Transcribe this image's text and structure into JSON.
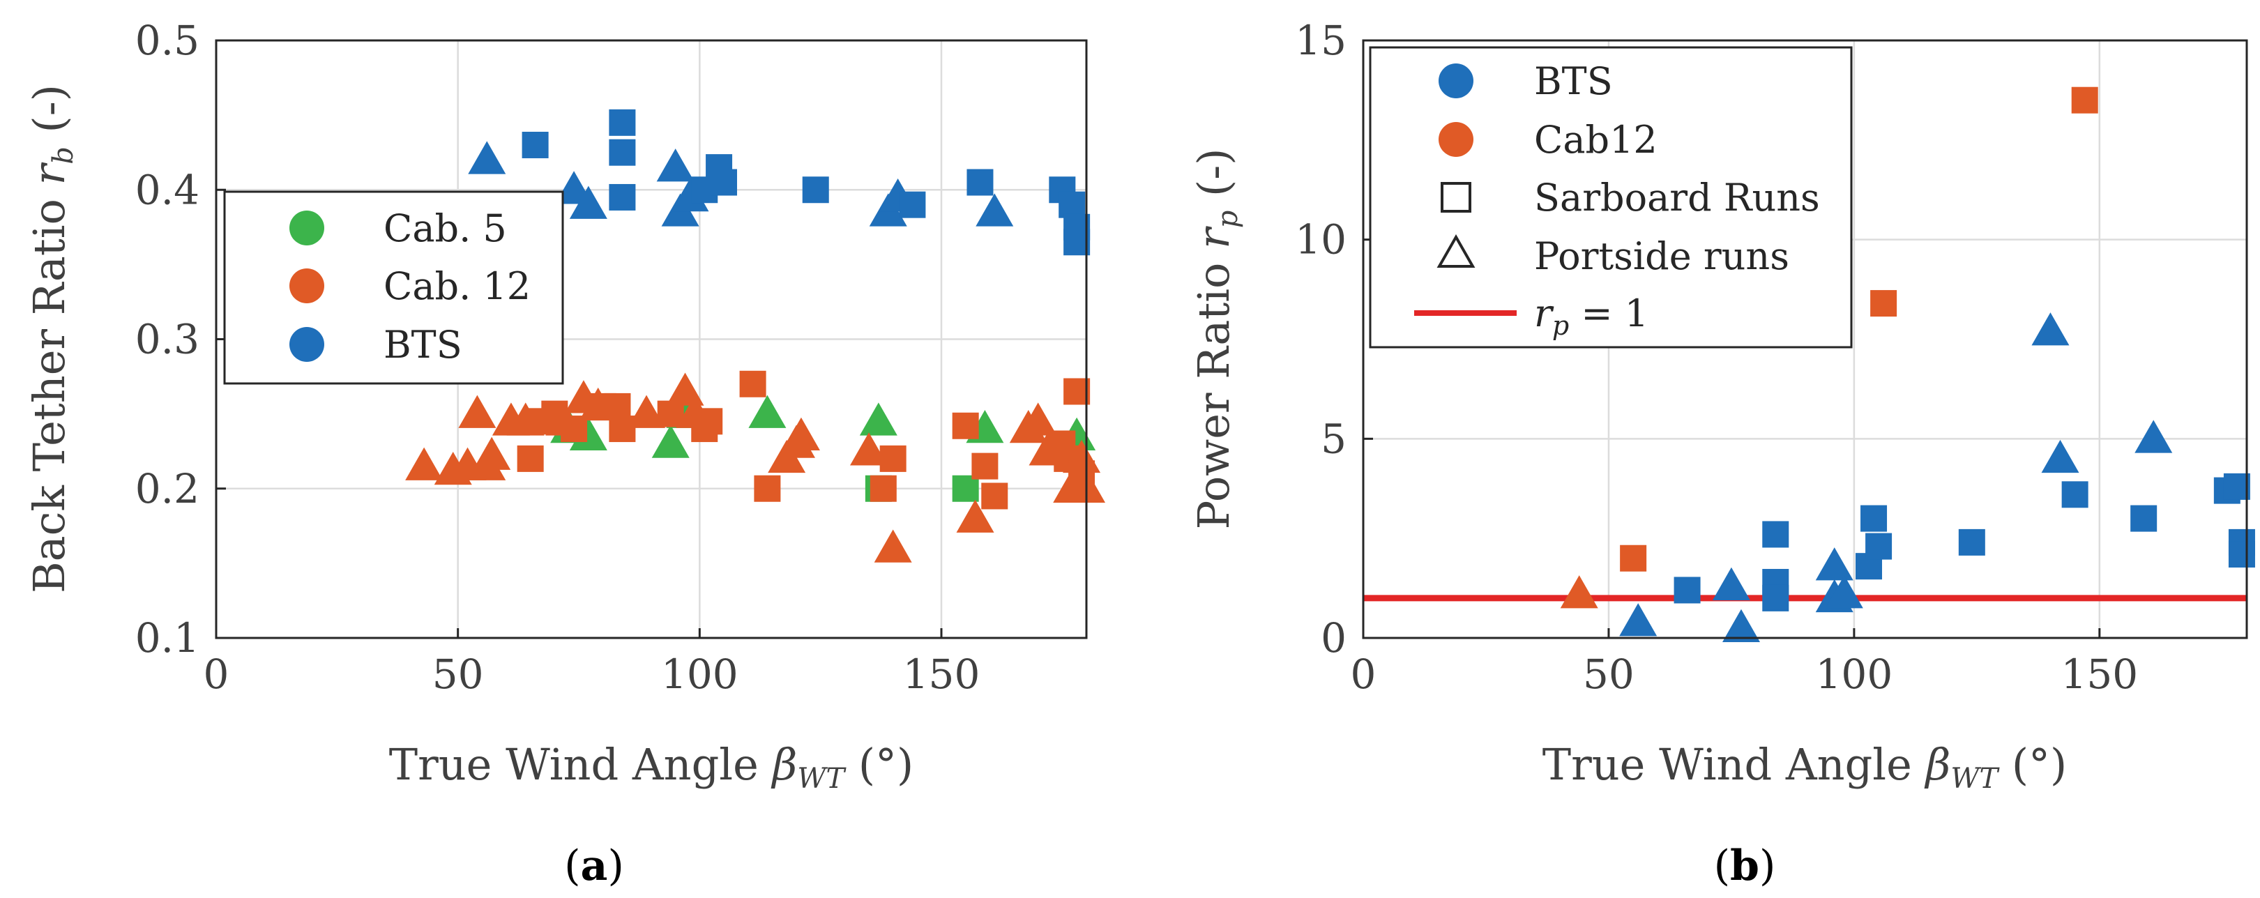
{
  "colors": {
    "bts": "#1f6fba",
    "cab12": "#e05a26",
    "cab5": "#3cb44b",
    "reference_line": "#e32626"
  },
  "chart_data": [
    {
      "type": "scatter",
      "panel_label": "a",
      "xlabel": "True Wind Angle βWT (°)",
      "ylabel": "Back Tether Ratio rb (-)",
      "xlim": [
        0,
        180
      ],
      "ylim": [
        0.1,
        0.5
      ],
      "xticks": [
        "0",
        "50",
        "100",
        "150"
      ],
      "yticks": [
        "0.1",
        "0.2",
        "0.3",
        "0.4",
        "0.5"
      ],
      "grid": true,
      "legend_position": "center-left",
      "legend": [
        "Cab. 5",
        "Cab. 12",
        "BTS"
      ],
      "series": [
        {
          "name": "Cab. 5",
          "color_key": "cab5",
          "points": [
            {
              "x": 73,
              "y": 0.24,
              "m": "triangle"
            },
            {
              "x": 77,
              "y": 0.235,
              "m": "triangle"
            },
            {
              "x": 94,
              "y": 0.23,
              "m": "triangle"
            },
            {
              "x": 97,
              "y": 0.25,
              "m": "triangle"
            },
            {
              "x": 114,
              "y": 0.25,
              "m": "triangle"
            },
            {
              "x": 137,
              "y": 0.245,
              "m": "triangle"
            },
            {
              "x": 137,
              "y": 0.2,
              "m": "square"
            },
            {
              "x": 155,
              "y": 0.2,
              "m": "square"
            },
            {
              "x": 159,
              "y": 0.24,
              "m": "triangle"
            },
            {
              "x": 177,
              "y": 0.225,
              "m": "triangle"
            },
            {
              "x": 178,
              "y": 0.235,
              "m": "triangle"
            }
          ]
        },
        {
          "name": "Cab. 12",
          "color_key": "cab12",
          "points": [
            {
              "x": 43,
              "y": 0.215,
              "m": "triangle"
            },
            {
              "x": 49,
              "y": 0.212,
              "m": "triangle"
            },
            {
              "x": 52,
              "y": 0.215,
              "m": "triangle"
            },
            {
              "x": 54,
              "y": 0.25,
              "m": "triangle"
            },
            {
              "x": 56,
              "y": 0.215,
              "m": "triangle"
            },
            {
              "x": 57,
              "y": 0.222,
              "m": "triangle"
            },
            {
              "x": 61,
              "y": 0.245,
              "m": "triangle"
            },
            {
              "x": 64,
              "y": 0.245,
              "m": "triangle"
            },
            {
              "x": 65,
              "y": 0.22,
              "m": "square"
            },
            {
              "x": 67,
              "y": 0.245,
              "m": "square"
            },
            {
              "x": 70,
              "y": 0.25,
              "m": "square"
            },
            {
              "x": 72,
              "y": 0.245,
              "m": "triangle"
            },
            {
              "x": 74,
              "y": 0.24,
              "m": "square"
            },
            {
              "x": 76,
              "y": 0.26,
              "m": "triangle"
            },
            {
              "x": 79,
              "y": 0.255,
              "m": "triangle"
            },
            {
              "x": 80,
              "y": 0.255,
              "m": "square"
            },
            {
              "x": 83,
              "y": 0.255,
              "m": "square"
            },
            {
              "x": 84,
              "y": 0.24,
              "m": "square"
            },
            {
              "x": 89,
              "y": 0.25,
              "m": "triangle"
            },
            {
              "x": 94,
              "y": 0.25,
              "m": "square"
            },
            {
              "x": 97,
              "y": 0.265,
              "m": "triangle"
            },
            {
              "x": 99,
              "y": 0.25,
              "m": "triangle"
            },
            {
              "x": 101,
              "y": 0.24,
              "m": "square"
            },
            {
              "x": 102,
              "y": 0.245,
              "m": "square"
            },
            {
              "x": 111,
              "y": 0.27,
              "m": "square"
            },
            {
              "x": 114,
              "y": 0.2,
              "m": "square"
            },
            {
              "x": 118,
              "y": 0.22,
              "m": "triangle"
            },
            {
              "x": 120,
              "y": 0.23,
              "m": "triangle"
            },
            {
              "x": 121,
              "y": 0.235,
              "m": "triangle"
            },
            {
              "x": 135,
              "y": 0.225,
              "m": "triangle"
            },
            {
              "x": 138,
              "y": 0.2,
              "m": "square"
            },
            {
              "x": 140,
              "y": 0.22,
              "m": "square"
            },
            {
              "x": 140,
              "y": 0.16,
              "m": "triangle"
            },
            {
              "x": 155,
              "y": 0.242,
              "m": "square"
            },
            {
              "x": 157,
              "y": 0.18,
              "m": "triangle"
            },
            {
              "x": 159,
              "y": 0.215,
              "m": "square"
            },
            {
              "x": 161,
              "y": 0.195,
              "m": "square"
            },
            {
              "x": 168,
              "y": 0.24,
              "m": "triangle"
            },
            {
              "x": 170,
              "y": 0.245,
              "m": "triangle"
            },
            {
              "x": 172,
              "y": 0.225,
              "m": "triangle"
            },
            {
              "x": 175,
              "y": 0.23,
              "m": "square"
            },
            {
              "x": 176,
              "y": 0.22,
              "m": "square"
            },
            {
              "x": 177,
              "y": 0.2,
              "m": "triangle"
            },
            {
              "x": 178,
              "y": 0.265,
              "m": "square"
            },
            {
              "x": 179,
              "y": 0.21,
              "m": "square"
            },
            {
              "x": 179,
              "y": 0.22,
              "m": "triangle"
            },
            {
              "x": 180,
              "y": 0.2,
              "m": "triangle"
            }
          ]
        },
        {
          "name": "BTS",
          "color_key": "bts",
          "points": [
            {
              "x": 56,
              "y": 0.42,
              "m": "triangle"
            },
            {
              "x": 66,
              "y": 0.43,
              "m": "square"
            },
            {
              "x": 74,
              "y": 0.4,
              "m": "triangle"
            },
            {
              "x": 77,
              "y": 0.39,
              "m": "triangle"
            },
            {
              "x": 84,
              "y": 0.445,
              "m": "square"
            },
            {
              "x": 84,
              "y": 0.425,
              "m": "square"
            },
            {
              "x": 84,
              "y": 0.395,
              "m": "square"
            },
            {
              "x": 95,
              "y": 0.415,
              "m": "triangle"
            },
            {
              "x": 96,
              "y": 0.385,
              "m": "triangle"
            },
            {
              "x": 98,
              "y": 0.395,
              "m": "triangle"
            },
            {
              "x": 101,
              "y": 0.4,
              "m": "square"
            },
            {
              "x": 104,
              "y": 0.415,
              "m": "square"
            },
            {
              "x": 105,
              "y": 0.405,
              "m": "square"
            },
            {
              "x": 124,
              "y": 0.4,
              "m": "square"
            },
            {
              "x": 139,
              "y": 0.385,
              "m": "triangle"
            },
            {
              "x": 141,
              "y": 0.395,
              "m": "triangle"
            },
            {
              "x": 144,
              "y": 0.39,
              "m": "square"
            },
            {
              "x": 158,
              "y": 0.405,
              "m": "square"
            },
            {
              "x": 161,
              "y": 0.385,
              "m": "triangle"
            },
            {
              "x": 175,
              "y": 0.4,
              "m": "square"
            },
            {
              "x": 177,
              "y": 0.39,
              "m": "square"
            },
            {
              "x": 178,
              "y": 0.375,
              "m": "square"
            },
            {
              "x": 178,
              "y": 0.365,
              "m": "square"
            }
          ]
        }
      ]
    },
    {
      "type": "scatter",
      "panel_label": "b",
      "xlabel": "True Wind Angle βWT (°)",
      "ylabel": "Power Ratio rp (-)",
      "xlim": [
        0,
        180
      ],
      "ylim": [
        0,
        15
      ],
      "xticks": [
        "0",
        "50",
        "100",
        "150"
      ],
      "yticks": [
        "0",
        "5",
        "10",
        "15"
      ],
      "grid": true,
      "legend_position": "top-left",
      "legend": [
        "BTS",
        "Cab12",
        "Sarboard Runs",
        "Portside runs",
        "rp = 1"
      ],
      "reference_line": {
        "y": 1,
        "label": "rp = 1"
      },
      "series": [
        {
          "name": "BTS",
          "color_key": "bts",
          "points": [
            {
              "x": 56,
              "y": 0.4,
              "m": "triangle"
            },
            {
              "x": 66,
              "y": 1.2,
              "m": "square"
            },
            {
              "x": 75,
              "y": 1.3,
              "m": "triangle"
            },
            {
              "x": 77,
              "y": 0.25,
              "m": "triangle"
            },
            {
              "x": 84,
              "y": 2.6,
              "m": "square"
            },
            {
              "x": 84,
              "y": 1.4,
              "m": "square"
            },
            {
              "x": 84,
              "y": 1.0,
              "m": "square"
            },
            {
              "x": 96,
              "y": 1.8,
              "m": "triangle"
            },
            {
              "x": 96,
              "y": 1.0,
              "m": "triangle"
            },
            {
              "x": 98,
              "y": 1.1,
              "m": "triangle"
            },
            {
              "x": 103,
              "y": 1.8,
              "m": "square"
            },
            {
              "x": 104,
              "y": 3.0,
              "m": "square"
            },
            {
              "x": 105,
              "y": 2.3,
              "m": "square"
            },
            {
              "x": 124,
              "y": 2.4,
              "m": "square"
            },
            {
              "x": 140,
              "y": 7.7,
              "m": "triangle"
            },
            {
              "x": 142,
              "y": 4.5,
              "m": "triangle"
            },
            {
              "x": 145,
              "y": 3.6,
              "m": "square"
            },
            {
              "x": 159,
              "y": 3.0,
              "m": "square"
            },
            {
              "x": 161,
              "y": 5.0,
              "m": "triangle"
            },
            {
              "x": 176,
              "y": 3.7,
              "m": "square"
            },
            {
              "x": 178,
              "y": 3.8,
              "m": "square"
            },
            {
              "x": 179,
              "y": 2.4,
              "m": "square"
            },
            {
              "x": 179,
              "y": 2.1,
              "m": "square"
            }
          ]
        },
        {
          "name": "Cab12",
          "color_key": "cab12",
          "points": [
            {
              "x": 44,
              "y": 1.1,
              "m": "triangle"
            },
            {
              "x": 55,
              "y": 2.0,
              "m": "square"
            },
            {
              "x": 106,
              "y": 8.4,
              "m": "square"
            },
            {
              "x": 147,
              "y": 13.5,
              "m": "square"
            }
          ]
        }
      ]
    }
  ]
}
